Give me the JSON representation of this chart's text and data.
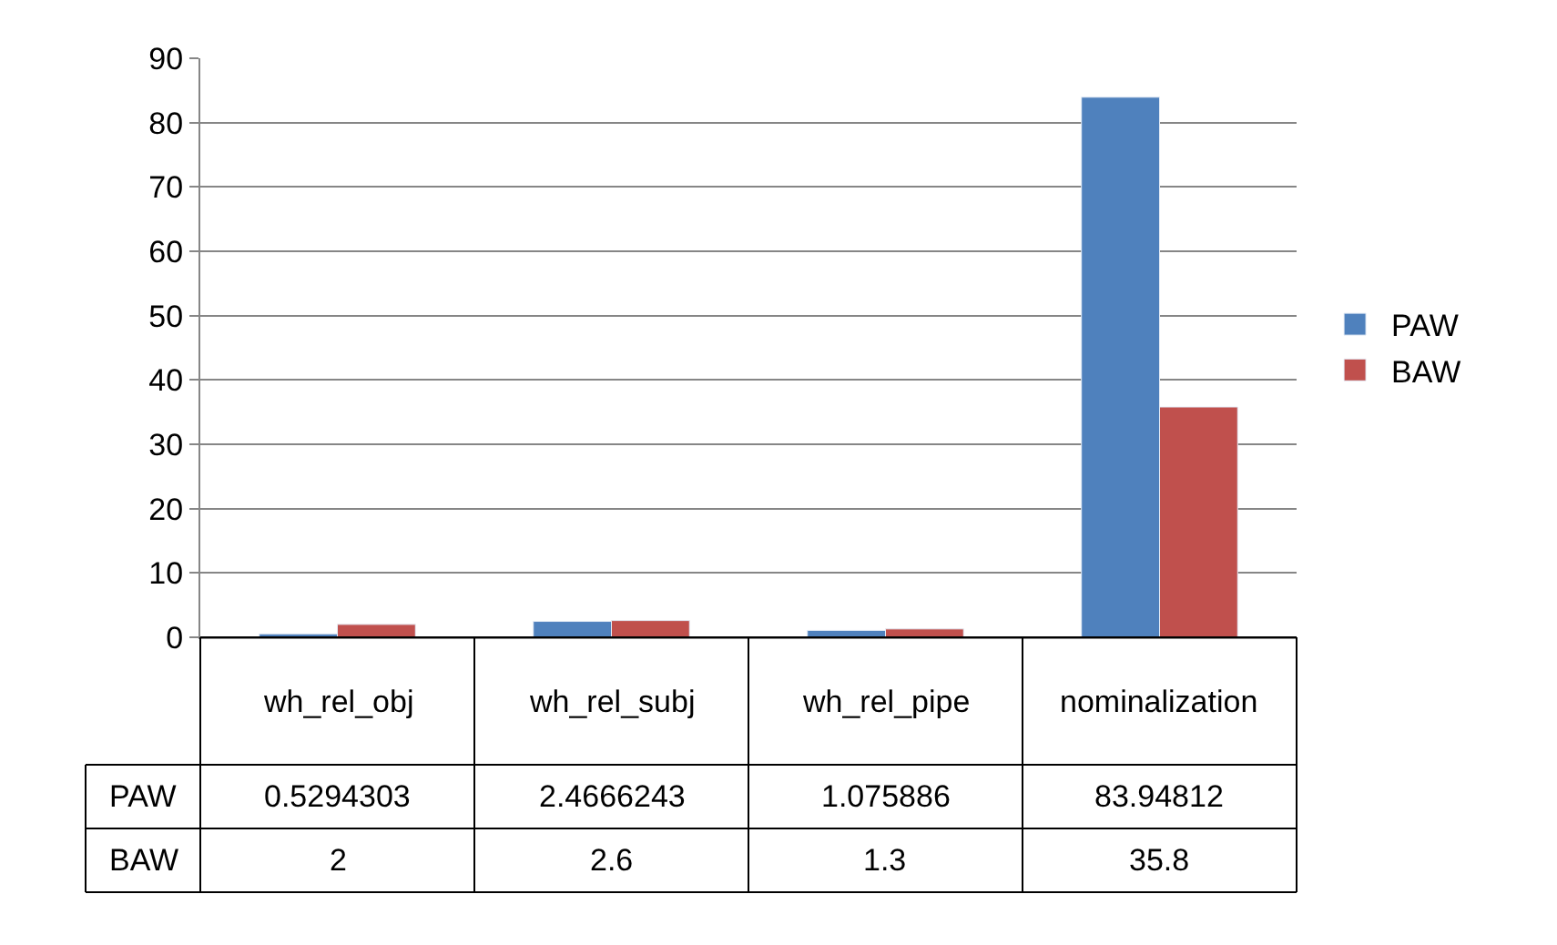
{
  "chart_data": {
    "type": "bar",
    "categories": [
      "wh_rel_obj",
      "wh_rel_subj",
      "wh_rel_pipe",
      "nominalization"
    ],
    "series": [
      {
        "name": "PAW",
        "color": "#4f81bd",
        "values": [
          0.5294303,
          2.4666243,
          1.075886,
          83.94812
        ]
      },
      {
        "name": "BAW",
        "color": "#c0504d",
        "values": [
          2,
          2.6,
          1.3,
          35.8
        ]
      }
    ],
    "ylim": [
      0,
      90
    ],
    "yticks": [
      0,
      10,
      20,
      30,
      40,
      50,
      60,
      70,
      80,
      90
    ],
    "grid": "y",
    "legend": "right",
    "data_labels": true
  }
}
